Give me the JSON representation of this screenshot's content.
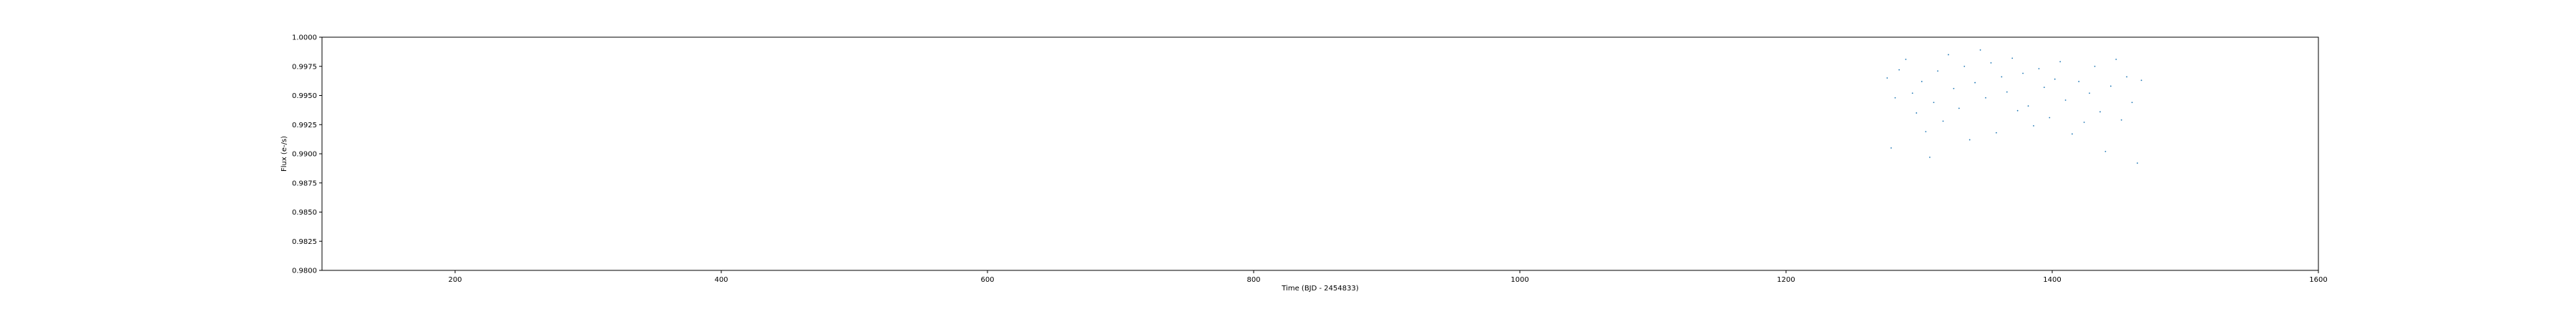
{
  "chart_data": {
    "type": "scatter",
    "title": "",
    "xlabel": "Time (BJD - 2454833)",
    "ylabel": "Flux (e-/s)",
    "xlim": [
      100,
      1600
    ],
    "ylim": [
      0.98,
      1.0
    ],
    "x_ticks": [
      200,
      400,
      600,
      800,
      1000,
      1200,
      1400,
      1600
    ],
    "x_tick_labels": [
      "200",
      "400",
      "600",
      "800",
      "1000",
      "1200",
      "1400",
      "1600"
    ],
    "y_ticks": [
      0.98,
      0.9825,
      0.985,
      0.9875,
      0.99,
      0.9925,
      0.995,
      0.9975,
      1.0
    ],
    "y_tick_labels": [
      "0.9800",
      "0.9825",
      "0.9850",
      "0.9875",
      "0.9900",
      "0.9925",
      "0.9950",
      "0.9975",
      "1.0000"
    ],
    "grid": false,
    "marker_color": "#1f77b4",
    "series": [
      {
        "x": [
          1276,
          1279,
          1282,
          1285,
          1290,
          1295,
          1298,
          1302,
          1305,
          1308,
          1311,
          1314,
          1318,
          1322,
          1326,
          1330,
          1334,
          1338,
          1342,
          1346,
          1350,
          1354,
          1358,
          1362,
          1366,
          1370,
          1374,
          1378,
          1382,
          1386,
          1390,
          1394,
          1398,
          1402,
          1406,
          1410,
          1415,
          1420,
          1424,
          1428,
          1432,
          1436,
          1440,
          1444,
          1448,
          1452,
          1456,
          1460,
          1464,
          1467
        ],
        "y": [
          0.9965,
          0.9905,
          0.9948,
          0.9972,
          0.9981,
          0.9952,
          0.9935,
          0.9962,
          0.9919,
          0.9897,
          0.9944,
          0.9971,
          0.9928,
          0.9985,
          0.9956,
          0.9939,
          0.9975,
          0.9912,
          0.9961,
          0.9989,
          0.9948,
          0.9978,
          0.9918,
          0.9966,
          0.9953,
          0.9982,
          0.9937,
          0.9969,
          0.9941,
          0.9924,
          0.9973,
          0.9957,
          0.9931,
          0.9964,
          0.9979,
          0.9946,
          0.9917,
          0.9962,
          0.9927,
          0.9952,
          0.9975,
          0.9936,
          0.9902,
          0.9958,
          0.9981,
          0.9929,
          0.9966,
          0.9944,
          0.9892,
          0.9963
        ]
      }
    ]
  }
}
